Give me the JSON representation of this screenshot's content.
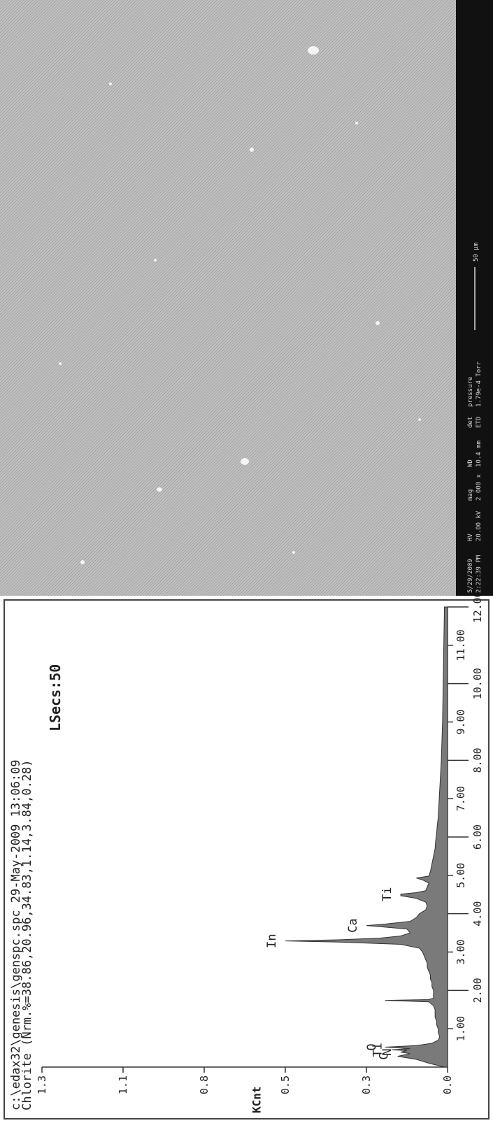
{
  "sem": {
    "info_bar": {
      "datetime": [
        "5/29/2009",
        "2:22:39 PM"
      ],
      "hv": [
        "HV",
        "20.00 kV"
      ],
      "mag": [
        "mag",
        "2 000 x"
      ],
      "wd": [
        "WD",
        "10.4 mm"
      ],
      "det": [
        "det",
        "ETD"
      ],
      "pressure": [
        "pressure",
        "1.79e-4 Torr"
      ],
      "scale_label": "50 µm"
    }
  },
  "chart_data": {
    "type": "line",
    "header_line1": "c:\\edax32\\genesis\\genspc.spc 29-May-2009 13:06:09",
    "header_line2": "Chlorite (Nrm.%=38.86,20.96,34.83,1.14,3.84,0.28)",
    "lsecs": "LSecs:50",
    "ylabel": "KCnt",
    "xlim": [
      0,
      12
    ],
    "ylim": [
      0,
      1.3
    ],
    "y_ticks": [
      "0.0",
      "0.3",
      "0.5",
      "0.8",
      "1.1",
      "1.3"
    ],
    "y_tick_values": [
      0,
      0.26,
      0.52,
      0.78,
      1.04,
      1.3
    ],
    "x_ticks_upper": [
      "1.00",
      "3.00",
      "5.00",
      "7.00",
      "9.00",
      "11.00"
    ],
    "x_tick_upper_values": [
      1,
      3,
      5,
      7,
      9,
      11
    ],
    "x_ticks_lower": [
      "2.00",
      "4.00",
      "6.00",
      "8.00",
      "10.00",
      "12.00"
    ],
    "x_tick_lower_values": [
      2,
      4,
      6,
      8,
      10,
      12
    ],
    "peak_labels": [
      {
        "text": "C",
        "x": 0.28
      },
      {
        "text": "N",
        "x": 0.39
      },
      {
        "text": "Ti",
        "x": 0.45
      },
      {
        "text": "O",
        "x": 0.52
      },
      {
        "text": "In",
        "x": 3.29
      },
      {
        "text": "Ca",
        "x": 3.69
      },
      {
        "text": "Ti",
        "x": 4.51
      }
    ],
    "series": [
      {
        "x": [
          0.0,
          0.1,
          0.2,
          0.28,
          0.35,
          0.39,
          0.43,
          0.45,
          0.48,
          0.52,
          0.56,
          0.62,
          0.7,
          0.8,
          0.9,
          1.0,
          1.1,
          1.2,
          1.3,
          1.4,
          1.5,
          1.6,
          1.7,
          1.74,
          1.76,
          1.8,
          1.9,
          2.0,
          2.1,
          2.2,
          2.3,
          2.4,
          2.5,
          2.6,
          2.7,
          2.8,
          2.9,
          3.0,
          3.1,
          3.2,
          3.26,
          3.29,
          3.32,
          3.36,
          3.42,
          3.5,
          3.6,
          3.65,
          3.69,
          3.73,
          3.8,
          3.9,
          4.0,
          4.1,
          4.2,
          4.3,
          4.4,
          4.47,
          4.51,
          4.55,
          4.6,
          4.7,
          4.8,
          4.88,
          4.93,
          4.98,
          5.1,
          5.3,
          5.5,
          5.7,
          5.9,
          6.1,
          6.3,
          6.5,
          6.8,
          7.1,
          7.4,
          7.7,
          8.0,
          8.5,
          9.0,
          9.5,
          10.0,
          10.5,
          11.0,
          11.5,
          12.0
        ],
        "y": [
          0.01,
          0.06,
          0.1,
          0.16,
          0.12,
          0.15,
          0.13,
          0.18,
          0.12,
          0.2,
          0.1,
          0.05,
          0.03,
          0.025,
          0.03,
          0.03,
          0.035,
          0.035,
          0.04,
          0.04,
          0.04,
          0.045,
          0.06,
          0.2,
          0.06,
          0.045,
          0.045,
          0.045,
          0.05,
          0.05,
          0.055,
          0.055,
          0.06,
          0.065,
          0.065,
          0.07,
          0.075,
          0.08,
          0.09,
          0.15,
          0.35,
          0.52,
          0.35,
          0.22,
          0.15,
          0.12,
          0.13,
          0.2,
          0.26,
          0.2,
          0.12,
          0.1,
          0.09,
          0.07,
          0.065,
          0.07,
          0.1,
          0.15,
          0.15,
          0.1,
          0.07,
          0.065,
          0.06,
          0.08,
          0.1,
          0.06,
          0.055,
          0.05,
          0.045,
          0.04,
          0.038,
          0.035,
          0.033,
          0.03,
          0.028,
          0.026,
          0.024,
          0.022,
          0.02,
          0.018,
          0.016,
          0.015,
          0.014,
          0.013,
          0.012,
          0.011,
          0.01
        ]
      }
    ]
  }
}
